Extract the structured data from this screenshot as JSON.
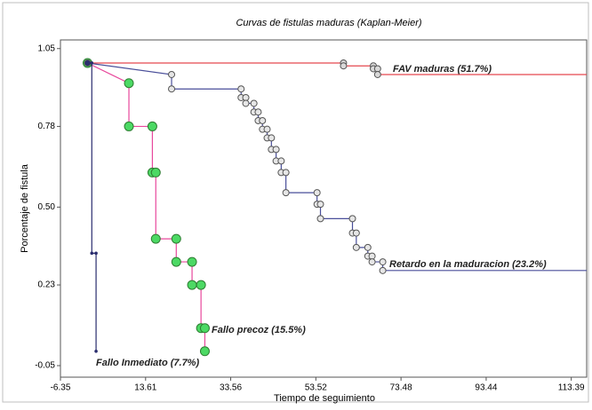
{
  "chart_data": {
    "type": "step",
    "title": "Curvas de fistulas maduras (Kaplan-Meier)",
    "x_label": "Tiempo de seguimiento",
    "y_label": "Porcentaje de fistula",
    "xlim": [
      -6.35,
      117
    ],
    "ylim": [
      -0.09,
      1.08
    ],
    "xticks": [
      -6.35,
      13.61,
      33.56,
      53.52,
      73.48,
      93.44,
      113.39
    ],
    "yticks": [
      -0.05,
      0.23,
      {
        "value": 0.5,
        "label": "0.50"
      },
      0.78,
      1.05
    ],
    "series": [
      {
        "name": "FAV maduras (51.7%)",
        "color": "#e5474f",
        "marker_color": "#d9d9d9",
        "x": [
          0,
          60,
          60,
          67,
          67,
          68,
          68,
          117
        ],
        "values": [
          1,
          1,
          0.99,
          0.99,
          0.98,
          0.98,
          0.96,
          0.96
        ]
      },
      {
        "name": "Retardo en la maduracion (23.2%)",
        "color": "#4a4f9a",
        "marker_color": "#e6e6e6",
        "x": [
          0,
          19.7,
          19.7,
          36.0,
          36.0,
          37.1,
          37.1,
          39.0,
          39.0,
          40.0,
          40.0,
          41.0,
          41.0,
          42.1,
          42.1,
          43.1,
          43.1,
          44.2,
          44.2,
          45.4,
          45.4,
          46.5,
          46.5,
          53.8,
          53.8,
          54.6,
          54.6,
          62.1,
          62.1,
          63.0,
          63.0,
          65.7,
          65.7,
          66.7,
          66.7,
          69.2,
          69.2,
          117
        ],
        "values": [
          1,
          0.96,
          0.91,
          0.91,
          0.88,
          0.88,
          0.86,
          0.86,
          0.83,
          0.83,
          0.8,
          0.8,
          0.77,
          0.77,
          0.74,
          0.74,
          0.7,
          0.7,
          0.66,
          0.66,
          0.62,
          0.62,
          0.55,
          0.55,
          0.51,
          0.51,
          0.46,
          0.46,
          0.41,
          0.41,
          0.36,
          0.36,
          0.33,
          0.33,
          0.31,
          0.31,
          0.28,
          0.28
        ]
      },
      {
        "name": "Fallo precoz (15.5%)",
        "color": "#e8489c",
        "marker_color": "#4cd964",
        "x": [
          0,
          9.7,
          9.7,
          15.2,
          15.2,
          16.0,
          16.0,
          20.8,
          20.8,
          24.5,
          24.5,
          26.6,
          26.6,
          27.5,
          27.5
        ],
        "values": [
          1,
          0.93,
          0.78,
          0.78,
          0.62,
          0.62,
          0.39,
          0.39,
          0.31,
          0.31,
          0.23,
          0.23,
          0.08,
          0.08,
          0.0
        ]
      },
      {
        "name": "Fallo Inmediato (7.7%)",
        "color": "#2a2d6e",
        "marker_color": "#2a2d6e",
        "x": [
          0,
          1,
          1,
          2,
          2
        ],
        "values": [
          1,
          1,
          0.34,
          0.34,
          0.0
        ]
      }
    ]
  }
}
